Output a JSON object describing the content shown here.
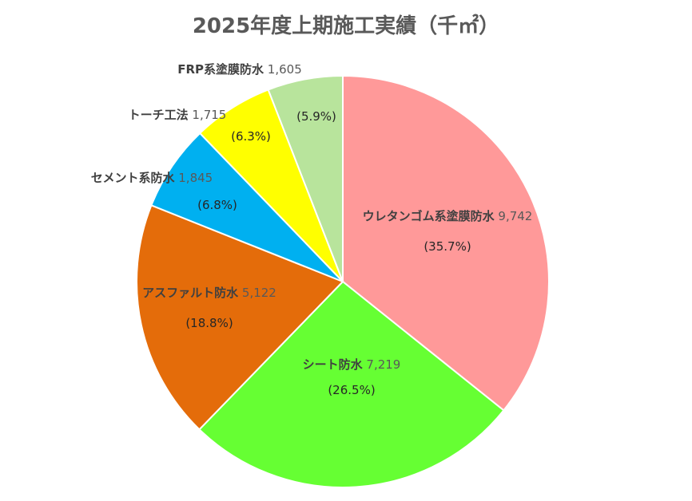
{
  "chart_data": {
    "type": "pie",
    "title": "2025年度上期施工実績（千㎡）",
    "slices": [
      {
        "name": "ウレタンゴム系塗膜防水",
        "value": "9,742",
        "numeric": 9742,
        "percent": "(35.7%)",
        "color": "#ff9999"
      },
      {
        "name": "シート防水",
        "value": "7,219",
        "numeric": 7219,
        "percent": "(26.5%)",
        "color": "#66ff33"
      },
      {
        "name": "アスファルト防水",
        "value": "5,122",
        "numeric": 5122,
        "percent": "(18.8%)",
        "color": "#e46c0a"
      },
      {
        "name": "セメント系防水",
        "value": "1,845",
        "numeric": 1845,
        "percent": "(6.8%)",
        "color": "#00b0f0"
      },
      {
        "name": "トーチ工法",
        "value": "1,715",
        "numeric": 1715,
        "percent": "(6.3%)",
        "color": "#ffff00"
      },
      {
        "name": "FRP系塗膜防水",
        "value": "1,605",
        "numeric": 1605,
        "percent": "(5.9%)",
        "color": "#b8e49c"
      }
    ]
  }
}
